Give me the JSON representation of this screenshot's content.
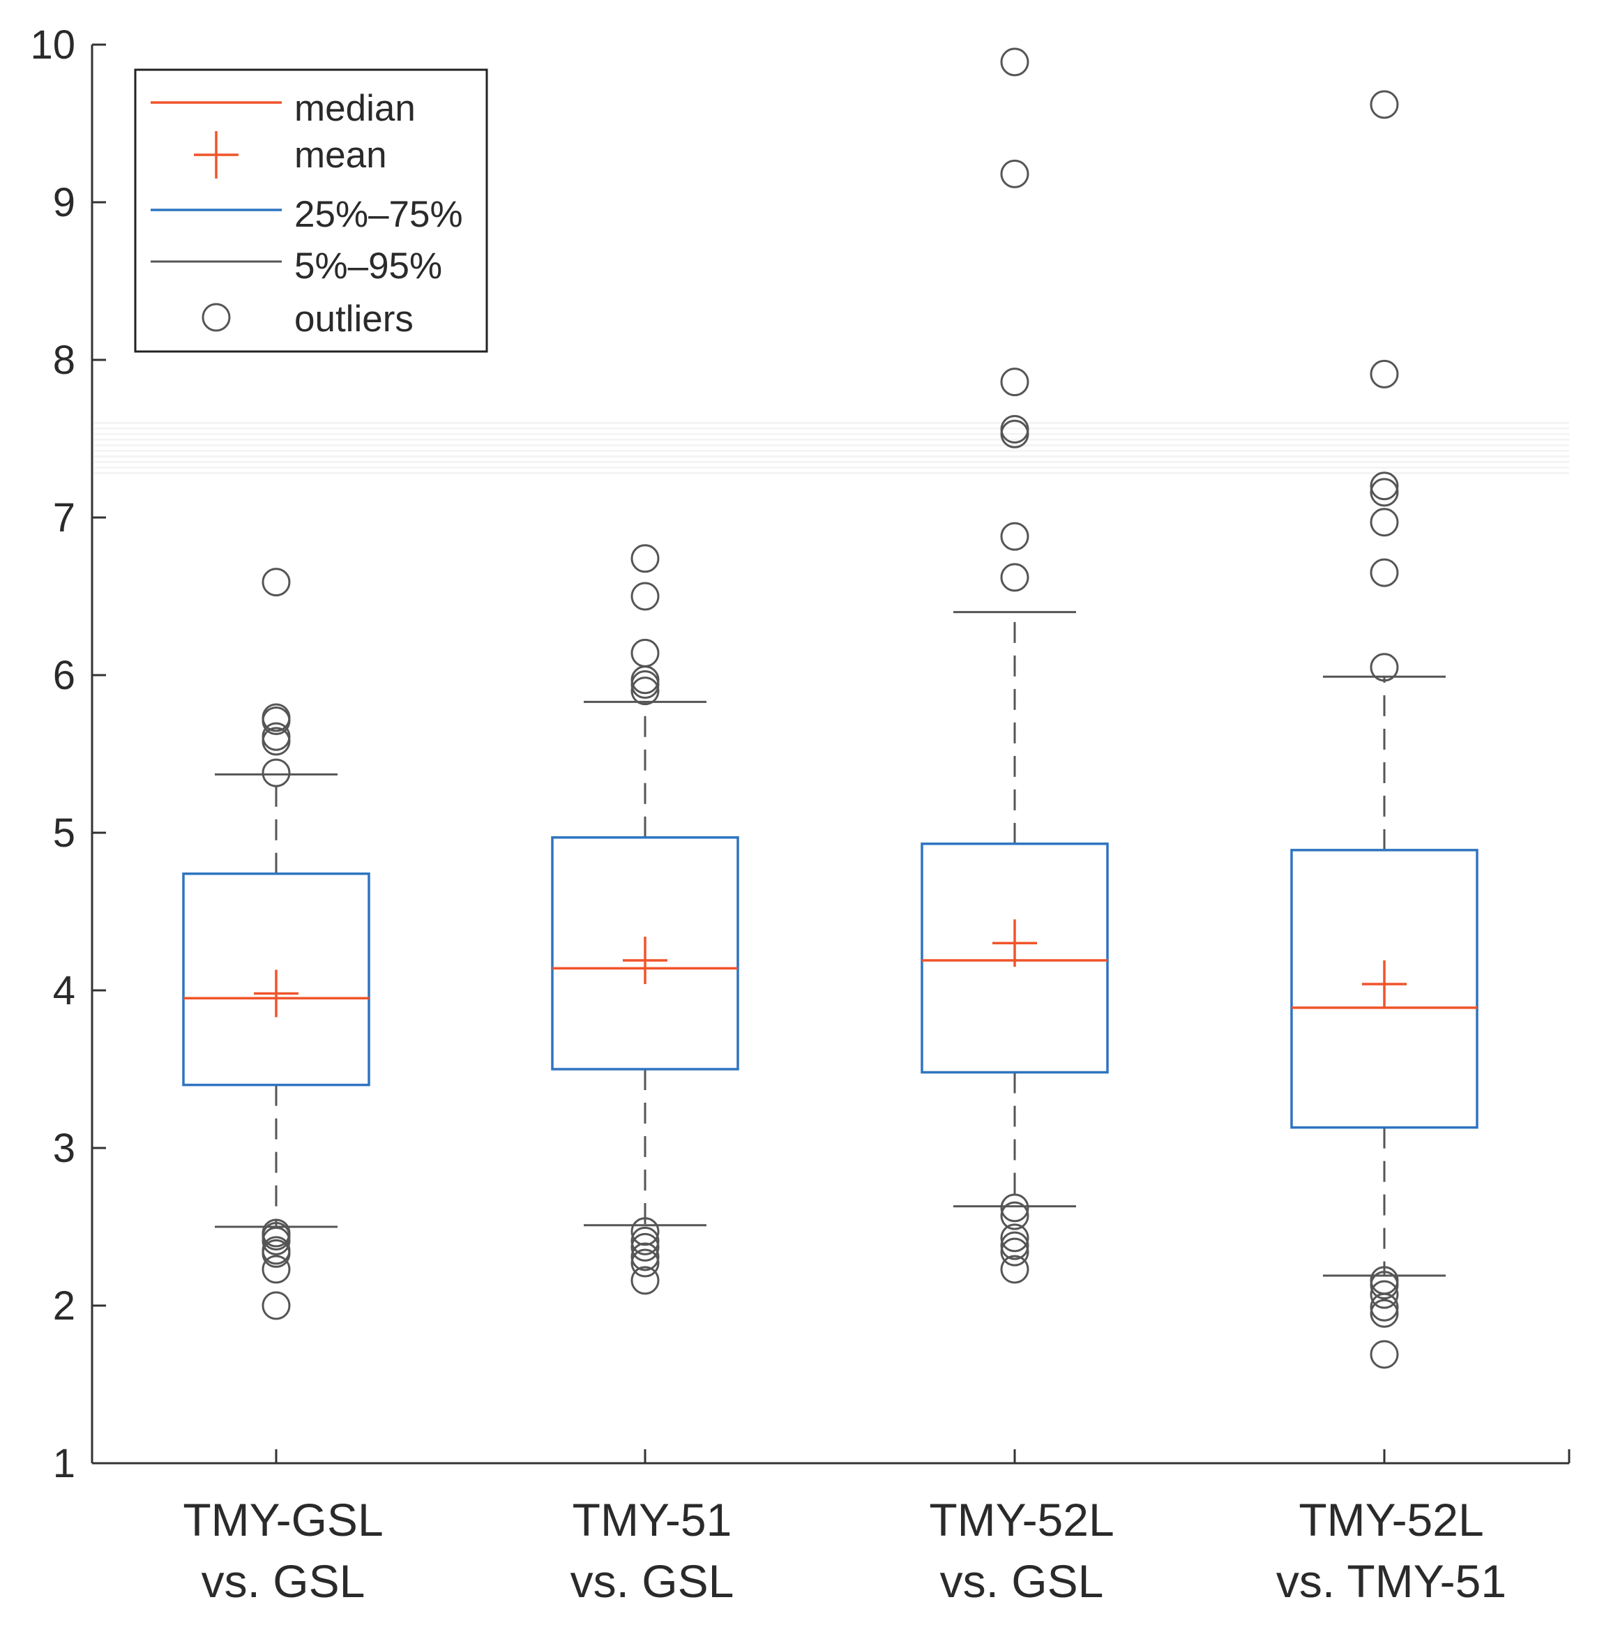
{
  "chart_data": {
    "type": "box",
    "title": "",
    "xlabel": "",
    "ylabel": "",
    "ylim": [
      1,
      10
    ],
    "yticks": [
      1,
      2,
      3,
      4,
      5,
      6,
      7,
      8,
      9,
      10
    ],
    "grid": false,
    "legend_position": "top-left",
    "legend": [
      {
        "key": "median",
        "label": "median"
      },
      {
        "key": "mean",
        "label": "mean"
      },
      {
        "key": "box",
        "label": "25%–75%"
      },
      {
        "key": "whisker",
        "label": "5%–95%"
      },
      {
        "key": "outlier",
        "label": "outliers"
      }
    ],
    "categories": [
      {
        "line1": "TMY-GSL",
        "line2": "vs. GSL"
      },
      {
        "line1": "TMY-51",
        "line2": "vs. GSL"
      },
      {
        "line1": "TMY-52L",
        "line2": "vs. GSL"
      },
      {
        "line1": "TMY-52L",
        "line2": "vs. TMY-51"
      }
    ],
    "boxes": [
      {
        "p5": 2.5,
        "q1": 3.4,
        "median": 3.95,
        "mean": 3.98,
        "q3": 4.74,
        "p95": 5.37,
        "outliers": [
          6.59,
          5.73,
          5.71,
          5.61,
          5.58,
          5.38,
          2.46,
          2.44,
          2.41,
          2.35,
          2.33,
          2.23,
          2.0
        ]
      },
      {
        "p5": 2.51,
        "q1": 3.5,
        "median": 4.14,
        "mean": 4.19,
        "q3": 4.97,
        "p95": 5.83,
        "outliers": [
          6.74,
          6.5,
          6.14,
          5.97,
          5.94,
          5.9,
          2.47,
          2.41,
          2.37,
          2.31,
          2.27,
          2.16
        ]
      },
      {
        "p5": 2.63,
        "q1": 3.48,
        "median": 4.19,
        "mean": 4.3,
        "q3": 4.93,
        "p95": 6.4,
        "outliers": [
          9.89,
          9.18,
          7.86,
          7.56,
          7.53,
          6.88,
          6.62,
          2.62,
          2.57,
          2.43,
          2.38,
          2.34,
          2.23
        ]
      },
      {
        "p5": 2.19,
        "q1": 3.13,
        "median": 3.89,
        "mean": 4.04,
        "q3": 4.89,
        "p95": 5.99,
        "outliers": [
          9.62,
          7.91,
          7.2,
          7.16,
          6.97,
          6.65,
          6.05,
          2.16,
          2.13,
          2.07,
          1.99,
          1.95,
          1.69
        ]
      }
    ],
    "colors": {
      "box": "#2f74c0",
      "median": "#f0542a",
      "mean": "#f0542a",
      "whisker": "#555555",
      "outlier": "#555555",
      "axis": "#333333"
    }
  }
}
